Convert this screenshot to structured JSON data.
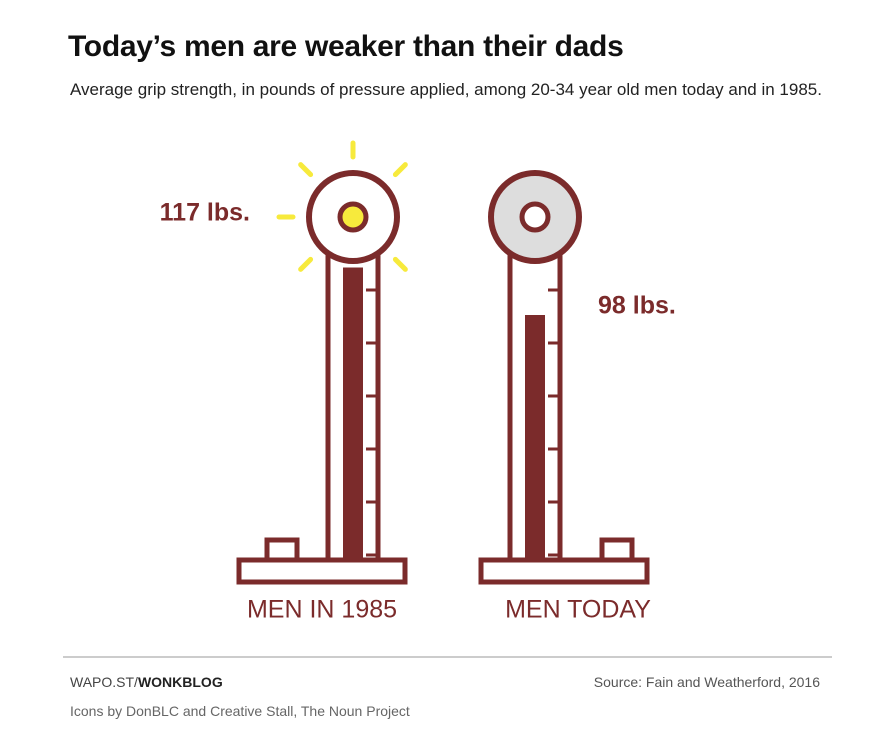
{
  "chart_data": {
    "type": "bar",
    "title": "Today’s men are weaker than their dads",
    "subtitle": "Average grip strength, in pounds of pressure applied, among 20-34 year old men today and in 1985.",
    "categories": [
      "MEN IN 1985",
      "MEN TODAY"
    ],
    "values": [
      117,
      98
    ],
    "value_labels": [
      "117 lbs.",
      "98 lbs."
    ],
    "color": "#7b2b2b",
    "credit_prefix": "WAPO.ST/",
    "credit": "WONKBLOG",
    "source": "Source: Fain and Weatherford, 2016",
    "icon_credit": "Icons by DonBLC and Creative Stall, The Noun Project"
  }
}
